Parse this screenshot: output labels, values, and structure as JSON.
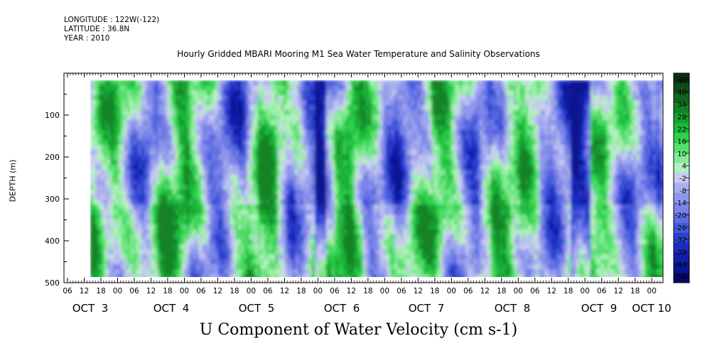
{
  "header": {
    "longitude": "LONGITUDE : 122W(-122)",
    "latitude": "LATITUDE : 36.8N",
    "year": "YEAR : 2010"
  },
  "chart_data": {
    "type": "heatmap",
    "title": "Hourly Gridded MBARI Mooring M1 Sea Water Temperature and Salinity Observations",
    "xlabel": "U Component of Water Velocity (cm s-1)",
    "ylabel": "DEPTH (m)",
    "y_ticks": [
      100,
      200,
      300,
      400,
      500
    ],
    "ylim": [
      0,
      500
    ],
    "y_reversed": true,
    "hour_ticks": [
      "06",
      "12",
      "18",
      "00",
      "06",
      "12",
      "18",
      "00",
      "06",
      "12",
      "18",
      "00",
      "06",
      "12",
      "18",
      "00",
      "06",
      "12",
      "18",
      "00",
      "06",
      "12",
      "18",
      "00",
      "06",
      "12",
      "18",
      "00",
      "06",
      "12",
      "18",
      "00",
      "06",
      "12",
      "18",
      "00"
    ],
    "day_labels": [
      "OCT  3",
      "OCT  4",
      "OCT  5",
      "OCT  6",
      "OCT  7",
      "OCT  8",
      "OCT  9",
      "OCT 10"
    ],
    "colorbar": {
      "levels": [
        "46",
        "40",
        "34",
        "28",
        "22",
        "16",
        "10",
        "4",
        "-2",
        "-8",
        "-14",
        "-20",
        "-26",
        "-32",
        "-38",
        "-44",
        "-50"
      ],
      "range": [
        -50,
        50
      ],
      "colors": [
        "#0a2f0f",
        "#0d4a16",
        "#10641e",
        "#138227",
        "#17a030",
        "#1cb93a",
        "#2fd14d",
        "#55e06d",
        "#84ea97",
        "#b4f0bd",
        "#c8cbf2",
        "#a9b0ee",
        "#8e97ea",
        "#7a83e8",
        "#5f6ee2",
        "#4558db",
        "#2c41d0",
        "#1a2cc0",
        "#101ea8",
        "#081590",
        "#030b6a"
      ]
    },
    "columns_desc": "Daily structure of U velocity: alternating green (eastward) and blue (westward) vertical bands",
    "series_hint": [
      {
        "day": "OCT 3",
        "dominant": "blue near surface, green at depth"
      },
      {
        "day": "OCT 4",
        "dominant": "blue upper, green 300-500 m"
      },
      {
        "day": "OCT 5",
        "dominant": "blue bands with strong green 300-450 m"
      },
      {
        "day": "OCT 6",
        "dominant": "mixed green/blue"
      },
      {
        "day": "OCT 7",
        "dominant": "green with blue patches"
      },
      {
        "day": "OCT 8",
        "dominant": "blue and green alternating"
      },
      {
        "day": "OCT 9",
        "dominant": "strong blue column then green"
      },
      {
        "day": "OCT 10",
        "dominant": "blue surface, green mid"
      }
    ]
  }
}
